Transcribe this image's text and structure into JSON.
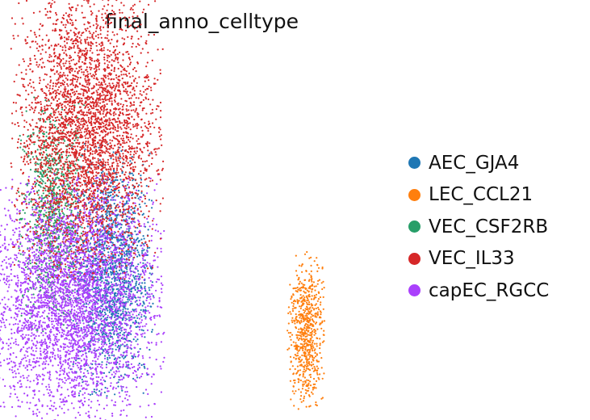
{
  "chart_data": {
    "type": "scatter",
    "title": "final_anno_celltype",
    "xlabel": "",
    "ylabel": "",
    "grid": false,
    "legend_placement": "right",
    "legend": [
      {
        "name": "AEC_GJA4",
        "color": "#1f77b4"
      },
      {
        "name": "LEC_CCL21",
        "color": "#ff7f0e"
      },
      {
        "name": "VEC_CSF2RB",
        "color": "#279e68"
      },
      {
        "name": "VEC_IL33",
        "color": "#d62728"
      },
      {
        "name": "capEC_RGCC",
        "color": "#aa40fc"
      }
    ],
    "clusters": [
      {
        "name": "AEC_GJA4",
        "center": [
          0.24,
          0.36
        ],
        "spread": [
          0.055,
          0.17
        ],
        "n_points_approx": 1500
      },
      {
        "name": "LEC_CCL21",
        "center": [
          0.8,
          0.18
        ],
        "spread": [
          0.025,
          0.11
        ],
        "n_points_approx": 700
      },
      {
        "name": "VEC_CSF2RB",
        "center": [
          0.07,
          0.52
        ],
        "spread": [
          0.045,
          0.16
        ],
        "n_points_approx": 900
      },
      {
        "name": "VEC_IL33",
        "center": [
          0.17,
          0.77
        ],
        "spread": [
          0.1,
          0.2
        ],
        "n_points_approx": 3500
      },
      {
        "name": "capEC_RGCC",
        "center": [
          0.13,
          0.27
        ],
        "spread": [
          0.12,
          0.17
        ],
        "n_points_approx": 4000
      }
    ]
  }
}
